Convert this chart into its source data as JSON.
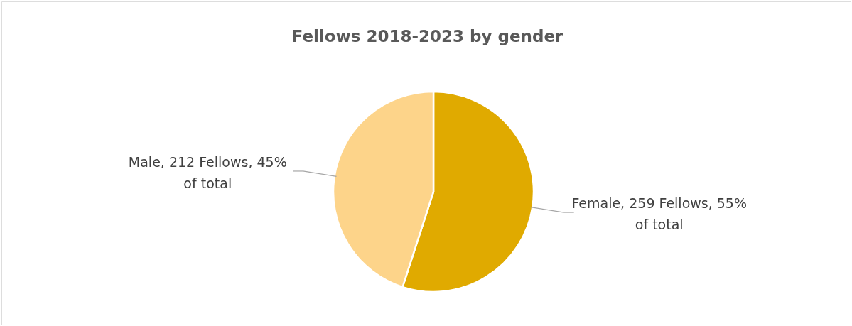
{
  "chart_data": {
    "type": "pie",
    "title": "Fellows 2018-2023 by gender",
    "categories": [
      "Female",
      "Male"
    ],
    "values": [
      259,
      212
    ],
    "colors": [
      "#e0aa00",
      "#fdd48a"
    ],
    "value_labels": [
      "259 Fellows, 55% of total",
      "212 Fellows, 45% of total"
    ]
  }
}
